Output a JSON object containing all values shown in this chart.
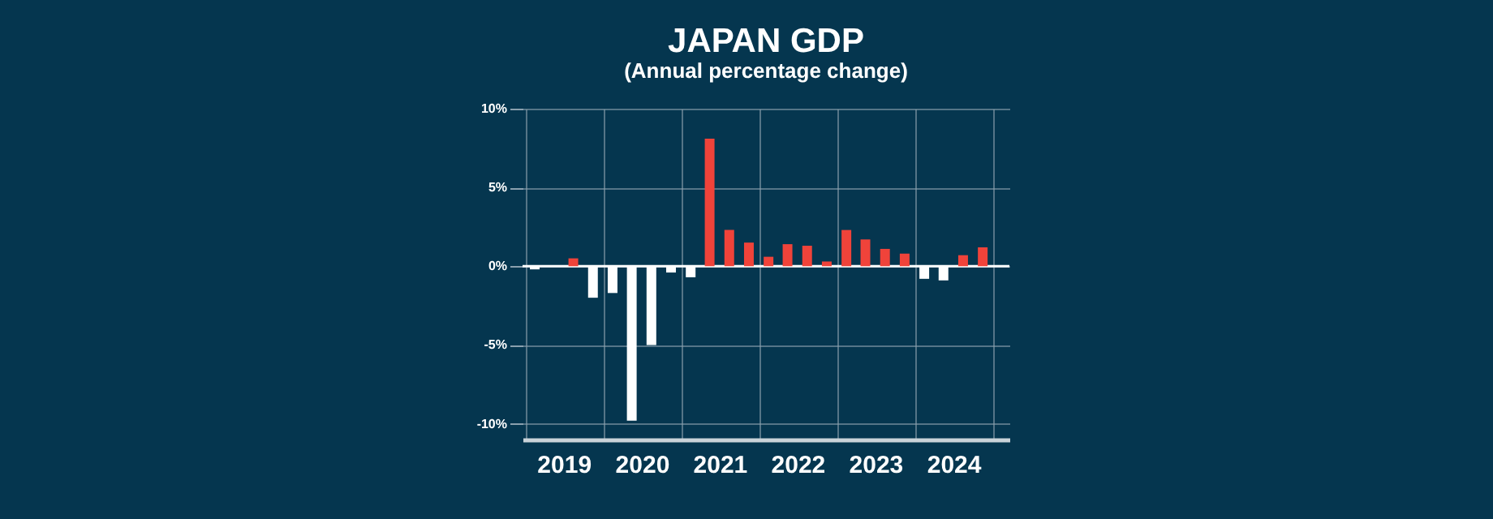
{
  "chart_data": {
    "type": "bar",
    "title": "JAPAN GDP",
    "subtitle": "(Annual percentage change)",
    "x": [
      "2019-02-15",
      "2019-05-15",
      "2019-08-15",
      "2019-11-15",
      "2020-02-15",
      "2020-05-15",
      "2020-08-15",
      "2020-11-15",
      "2021-02-15",
      "2021-05-15",
      "2021-08-15",
      "2021-11-15",
      "2022-02-15",
      "2022-05-15",
      "2022-08-15",
      "2022-11-15",
      "2023-02-15",
      "2023-05-15",
      "2023-08-15",
      "2023-11-15",
      "2024-02-15",
      "2024-05-15",
      "2024-08-15",
      "2024-11-15"
    ],
    "values": [
      -0.2,
      0,
      0.5,
      -2.0,
      -1.7,
      -9.8,
      -5.0,
      -0.4,
      -0.7,
      8.1,
      2.3,
      1.5,
      0.6,
      1.4,
      1.3,
      0.3,
      2.3,
      1.7,
      1.1,
      0.8,
      -0.8,
      -0.9,
      0.7,
      1.2
    ],
    "colors": [
      "#ffffff",
      "#ffffff",
      "#f0433a",
      "#ffffff",
      "#ffffff",
      "#ffffff",
      "#ffffff",
      "#ffffff",
      "#ffffff",
      "#f0433a",
      "#f0433a",
      "#f0433a",
      "#f0433a",
      "#f0433a",
      "#f0433a",
      "#f0433a",
      "#f0433a",
      "#f0433a",
      "#f0433a",
      "#f0433a",
      "#ffffff",
      "#ffffff",
      "#f0433a",
      "#f0433a"
    ],
    "xlim": [
      "2018-12-20",
      "2025-03-20"
    ],
    "xticks": [
      {
        "value": "2019-01-01",
        "label": null
      },
      {
        "value": "2019-07-01",
        "label": "2019"
      },
      {
        "value": "2020-01-01",
        "label": null
      },
      {
        "value": "2020-07-01",
        "label": "2020"
      },
      {
        "value": "2021-01-01",
        "label": null
      },
      {
        "value": "2021-07-01",
        "label": "2021"
      },
      {
        "value": "2022-01-01",
        "label": null
      },
      {
        "value": "2022-07-01",
        "label": "2022"
      },
      {
        "value": "2023-01-01",
        "label": null
      },
      {
        "value": "2023-07-01",
        "label": "2023"
      },
      {
        "value": "2024-01-01",
        "label": null
      },
      {
        "value": "2024-07-01",
        "label": "2024"
      },
      {
        "value": "2025-01-01",
        "label": null
      }
    ],
    "ylim": [
      -11,
      10
    ],
    "yticks": [
      {
        "value": -10,
        "label": "-10%"
      },
      {
        "value": -5,
        "label": "-5%"
      },
      {
        "value": 0,
        "label": "0%"
      },
      {
        "value": 5,
        "label": "5%"
      },
      {
        "value": 10,
        "label": "10%"
      }
    ],
    "ref_lines": [
      {
        "axis": "y",
        "value": 0,
        "label": null,
        "color": "#ffffff"
      }
    ],
    "grid": true
  }
}
